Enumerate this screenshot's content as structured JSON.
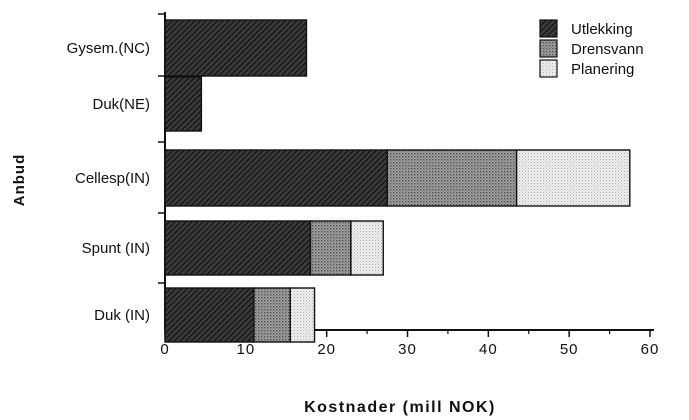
{
  "chart_data": {
    "type": "bar",
    "orientation": "horizontal",
    "stacked": true,
    "title": "",
    "xlabel": "Kostnader  (mill  NOK)",
    "ylabel": "Anbud",
    "xlim": [
      0,
      60
    ],
    "xticks": [
      "0",
      "10",
      "20",
      "30",
      "40",
      "50",
      "60"
    ],
    "categories": [
      "Gysem.(NC)",
      "Duk(NE)",
      "Cellesp(IN)",
      "Spunt (IN)",
      "Duk  (IN)"
    ],
    "series": [
      {
        "name": "Utlekking",
        "pattern": "dense-hatch",
        "color": "#2a2a2a",
        "values": [
          17.5,
          4.5,
          27.5,
          18.0,
          11.0
        ]
      },
      {
        "name": "Drensvann",
        "pattern": "medium-dots",
        "color": "#8c8c8c",
        "values": [
          0,
          0,
          16.0,
          5.0,
          4.5
        ]
      },
      {
        "name": "Planering",
        "pattern": "light-dots",
        "color": "#d9d9d9",
        "values": [
          0,
          0,
          14.0,
          4.0,
          3.0
        ]
      }
    ],
    "legend": "top-right",
    "grid": false
  }
}
